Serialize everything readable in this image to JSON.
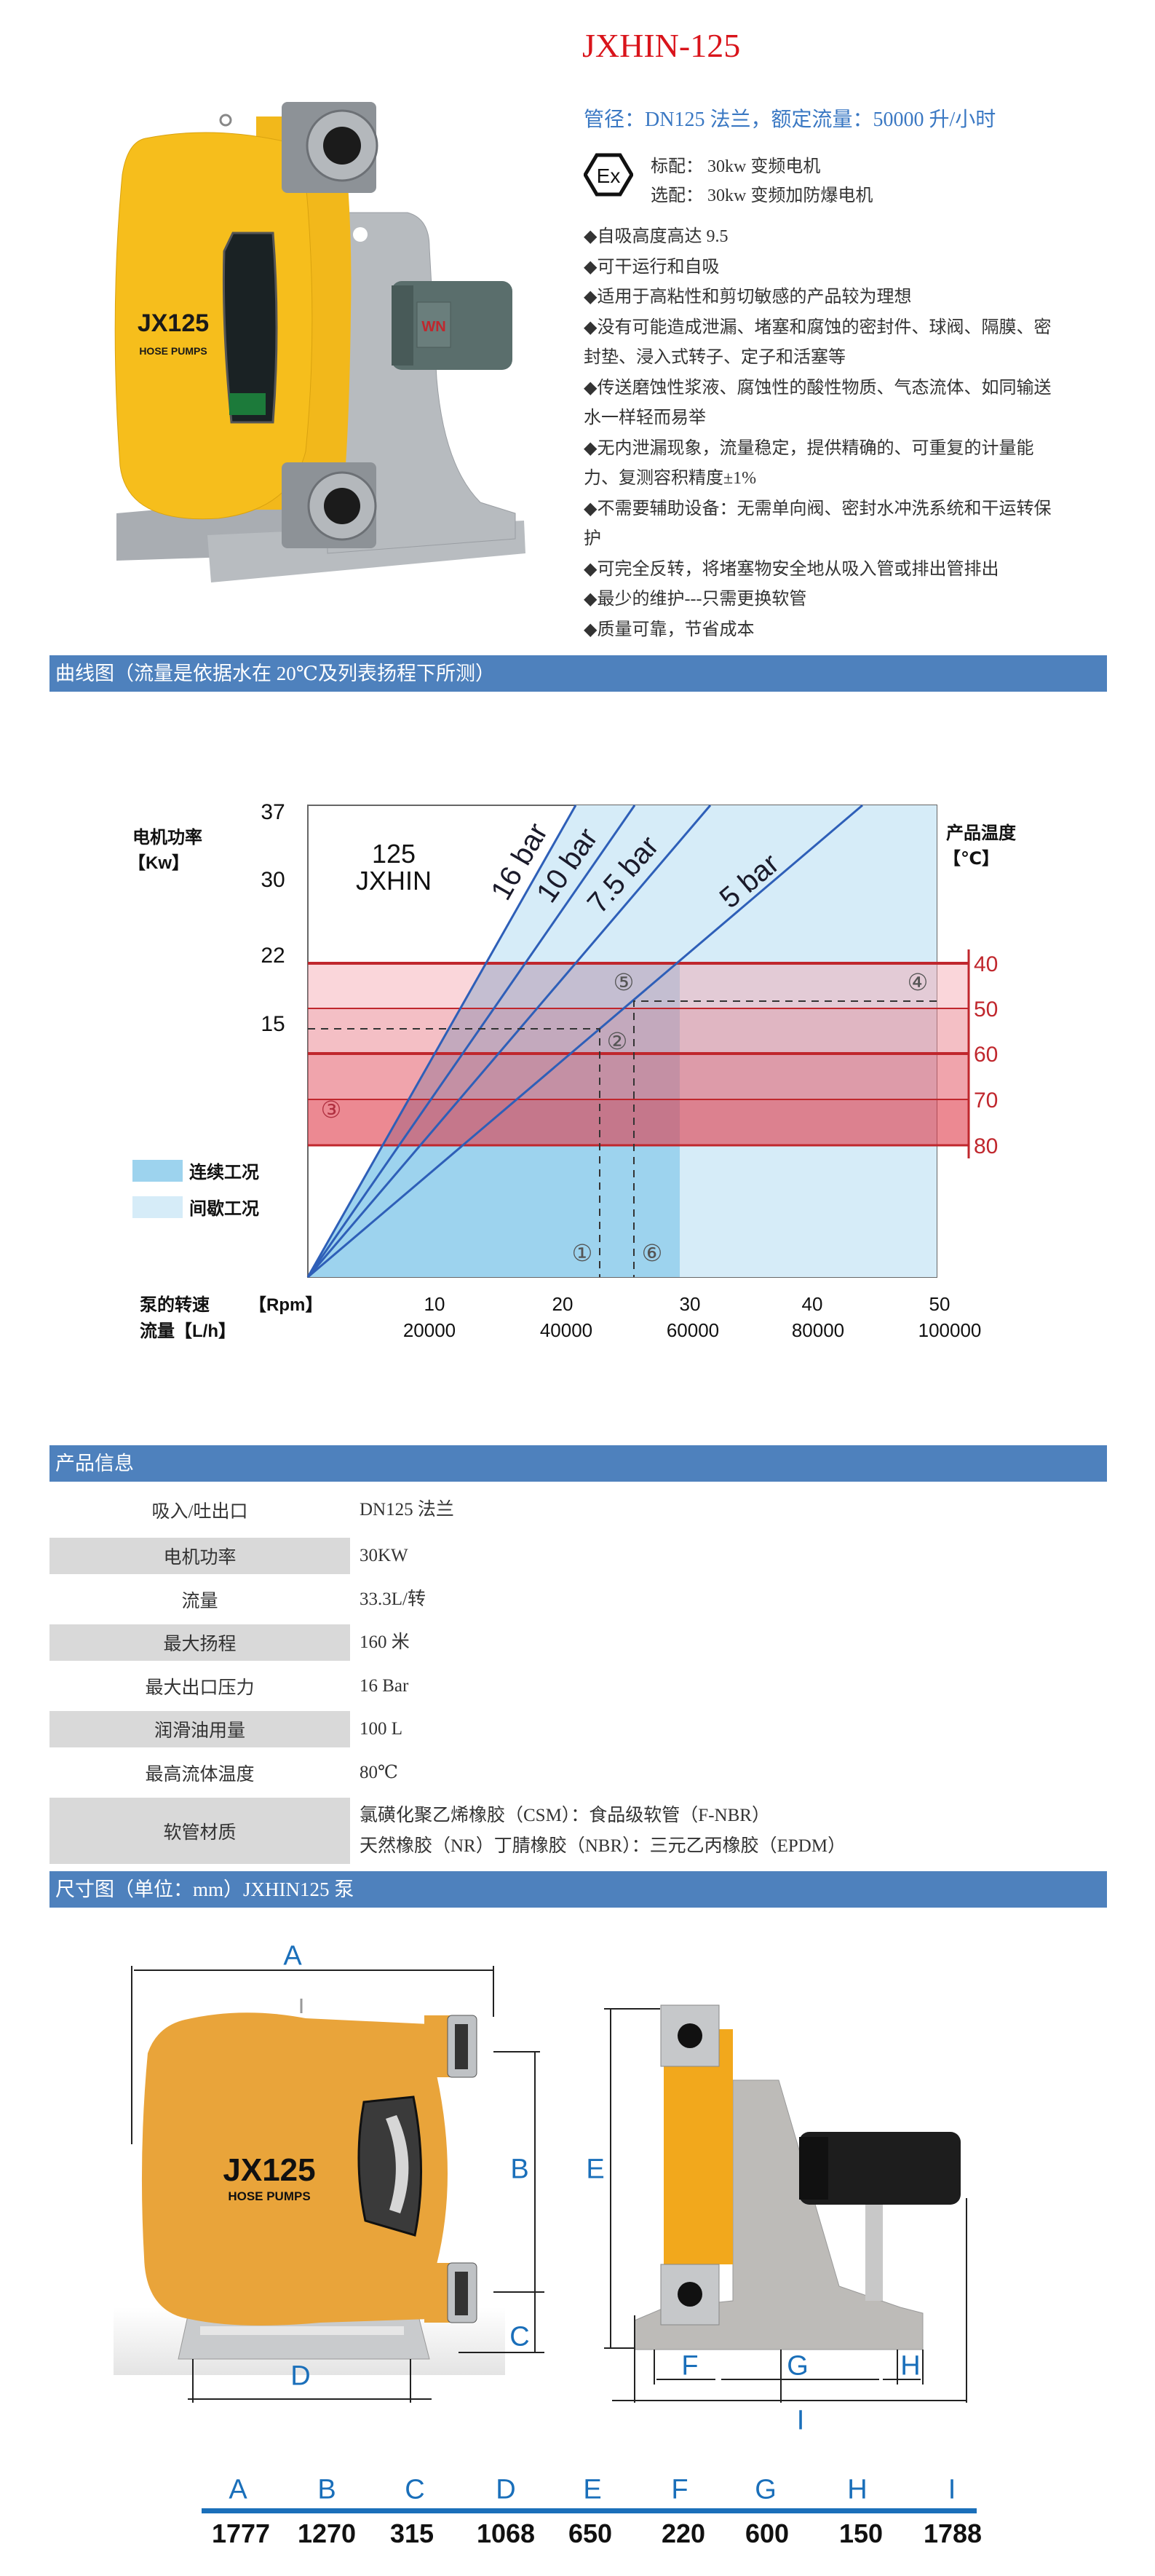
{
  "product": {
    "title": "JXHIN-125",
    "spec_line": "管径：DN125 法兰，额定流量：50000 升/小时",
    "ex_icon": "ex-explosion-proof-icon",
    "ex_text": "Ex",
    "motor_standard": "标配： 30kw 变频电机",
    "motor_optional": "选配： 30kw 变频加防爆电机",
    "bullets": [
      "◆自吸高度高达 9.5",
      "◆可干运行和自吸",
      "◆适用于高粘性和剪切敏感的产品较为理想",
      "◆没有可能造成泄漏、堵塞和腐蚀的密封件、球阀、隔膜、密封垫、浸入式转子、定子和活塞等",
      "◆传送磨蚀性浆液、腐蚀性的酸性物质、气态流体、如同输送水一样轻而易举",
      "◆无内泄漏现象，流量稳定，提供精确的、可重复的计量能力、复测容积精度±1%",
      "◆不需要辅助设备：无需单向阀、密封水冲洗系统和干运转保护",
      "◆可完全反转，将堵塞物安全地从吸入管或排出管排出",
      "◆最少的维护---只需更换软管",
      "◆质量可靠，节省成本"
    ],
    "photo_logo": "JX125",
    "photo_logo_sub": "HOSE PUMPS",
    "motor_brand": "WN"
  },
  "curve_section": {
    "header": "曲线图（流量是依据水在 20℃及列表扬程下所测）"
  },
  "chart_data": {
    "type": "line",
    "model_line1": "125",
    "model_line2": "JXHIN",
    "ylabel": "电机功率",
    "ylabel_unit": "【Kw】",
    "y_ticks": [
      "37",
      "30",
      "22",
      "15"
    ],
    "y2label": "产品温度",
    "y2label_unit": "【℃】",
    "y2_ticks": [
      "40",
      "50",
      "60",
      "70",
      "80"
    ],
    "xlabel_speed": "泵的转速",
    "xlabel_speed_unit": "【Rpm】",
    "x_ticks_speed": [
      "10",
      "20",
      "30",
      "40",
      "50"
    ],
    "xlabel_flow": "流量【L/h】",
    "x_ticks_flow": [
      "20000",
      "40000",
      "60000",
      "80000",
      "100000"
    ],
    "xlim_rpm": [
      0,
      50
    ],
    "ylim_kw": [
      0,
      37
    ],
    "series": [
      {
        "name": "16 bar"
      },
      {
        "name": "10 bar"
      },
      {
        "name": "7.5 bar"
      },
      {
        "name": "5 bar"
      }
    ],
    "legend": [
      {
        "label": "连续工况",
        "color": "#9dd3ee"
      },
      {
        "label": "间歇工况",
        "color": "#d6ecf8"
      }
    ],
    "legend_position": "left",
    "markers": [
      "①",
      "②",
      "③",
      "④",
      "⑤",
      "⑥"
    ],
    "colors": {
      "line": "#2e5fb8",
      "band": "#c0272d",
      "continuous": "#9dd3ee",
      "intermittent": "#d6ecf8"
    }
  },
  "info_section": {
    "header": "产品信息",
    "rows": [
      {
        "label": "吸入/吐出口",
        "value": [
          "DN125 法兰"
        ]
      },
      {
        "label": "电机功率",
        "value": [
          "30KW"
        ]
      },
      {
        "label": "流量",
        "value": [
          "33.3L/转"
        ]
      },
      {
        "label": "最大扬程",
        "value": [
          "160 米"
        ]
      },
      {
        "label": "最大出口压力",
        "value": [
          "16 Bar"
        ]
      },
      {
        "label": "润滑油用量",
        "value": [
          "100 L"
        ]
      },
      {
        "label": "最高流体温度",
        "value": [
          "80℃"
        ]
      },
      {
        "label": "软管材质",
        "value": [
          "氯磺化聚乙烯橡胶（CSM）：食品级软管（F-NBR）",
          "天然橡胶（NR）丁腈橡胶（NBR）：三元乙丙橡胶（EPDM）"
        ]
      }
    ]
  },
  "dimension_section": {
    "header": "尺寸图（单位：mm）JXHIN125 泵",
    "drawing_labels": {
      "A": "A",
      "B": "B",
      "C": "C",
      "D": "D",
      "E": "E",
      "F": "F",
      "G": "G",
      "H": "H",
      "I": "I"
    },
    "drawing_logo": "JX125",
    "drawing_logo_sub": "HOSE PUMPS",
    "table": {
      "letters": [
        "A",
        "B",
        "C",
        "D",
        "E",
        "F",
        "G",
        "H",
        "I"
      ],
      "values": [
        "1777",
        "1270",
        "315",
        "1068",
        "650",
        "220",
        "600",
        "150",
        "1788"
      ]
    },
    "accent_color": "#1a6fba"
  }
}
